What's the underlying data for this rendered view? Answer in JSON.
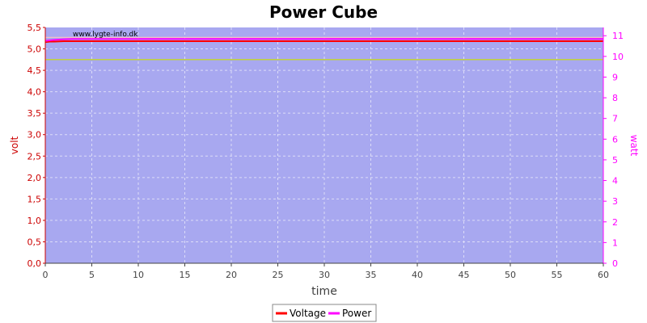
{
  "chart_data": {
    "type": "line",
    "title": "Power Cube",
    "watermark": "www.lygte-info.dk",
    "xlabel": "time",
    "ylabel_left": "volt",
    "ylabel_right": "watt",
    "xlim": [
      0,
      60
    ],
    "ylim_left": [
      0,
      5.5
    ],
    "ylim_right": [
      0,
      11.4
    ],
    "x_ticks": [
      "0",
      "5",
      "10",
      "15",
      "20",
      "25",
      "30",
      "35",
      "40",
      "45",
      "50",
      "55",
      "60"
    ],
    "y_left_ticks": [
      "0,0",
      "0,5",
      "1,0",
      "1,5",
      "2,0",
      "2,5",
      "3,0",
      "3,5",
      "4,0",
      "4,5",
      "5,0",
      "5,5"
    ],
    "y_right_ticks": [
      "0",
      "1",
      "2",
      "3",
      "4",
      "5",
      "6",
      "7",
      "8",
      "9",
      "10",
      "11"
    ],
    "grid": true,
    "legend_position": "bottom-center",
    "series": [
      {
        "name": "Voltage",
        "axis": "left",
        "color": "#ff0000",
        "x": [
          0,
          0.5,
          1,
          2,
          3,
          60
        ],
        "y": [
          5.16,
          5.17,
          5.17,
          5.18,
          5.18,
          5.18
        ]
      },
      {
        "name": "Power",
        "axis": "right",
        "color": "#ff00ff",
        "x": [
          0,
          0.5,
          1,
          2,
          3,
          60
        ],
        "y": [
          10.75,
          10.78,
          10.8,
          10.83,
          10.84,
          10.84
        ]
      },
      {
        "name": "",
        "axis": "right",
        "color": "#ffc0c0",
        "x": [
          0,
          60
        ],
        "y": [
          10.92,
          10.92
        ]
      },
      {
        "name": "",
        "axis": "left",
        "color": "#c8e000",
        "x": [
          0,
          60
        ],
        "y": [
          4.75,
          4.75
        ]
      }
    ],
    "colors": {
      "plot_background": "#a8a8f0",
      "grid": "#dcdcf8",
      "left_axis": "#cc0000",
      "right_axis": "#ff00ff",
      "x_axis": "#444444"
    }
  }
}
